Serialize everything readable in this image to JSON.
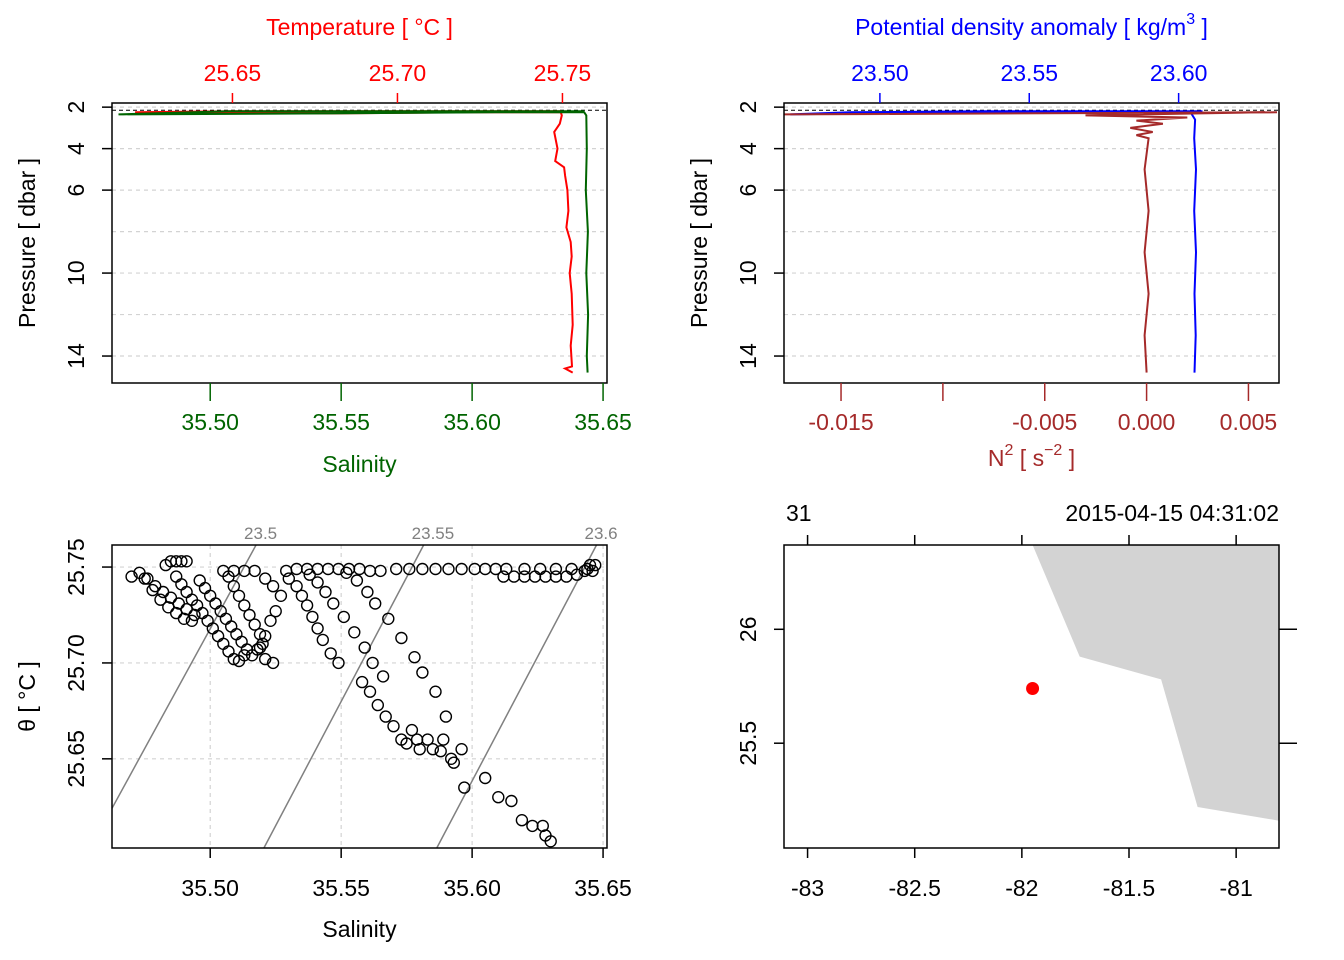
{
  "colors": {
    "temperature": "#ff0000",
    "salinity": "#006400",
    "density": "#0000ff",
    "n2": "#a52a2a",
    "grid": "#d3d3d3",
    "isopycnal": "#808080",
    "land": "#d3d3d3",
    "station": "#ff0000"
  },
  "chart_data": [
    {
      "id": "profile-ts",
      "type": "line",
      "title_top": "Temperature [ °C ]",
      "xlabel_bottom": "Salinity",
      "ylabel": "Pressure [ dbar ]",
      "top_ticks": [
        "25.65",
        "25.70",
        "25.75"
      ],
      "top_tick_values": [
        25.65,
        25.7,
        25.75
      ],
      "top_range": [
        25.6135,
        25.7635
      ],
      "bottom_ticks": [
        "35.50",
        "35.55",
        "35.60",
        "35.65"
      ],
      "bottom_tick_values": [
        35.5,
        35.55,
        35.6,
        35.65
      ],
      "bottom_range": [
        35.4625,
        35.6515
      ],
      "y_ticks": [
        "2",
        "4",
        "6",
        "10",
        "14"
      ],
      "y_tick_values": [
        2,
        4,
        6,
        10,
        14
      ],
      "y_gridlines": [
        2,
        4,
        6,
        8,
        10,
        12,
        14
      ],
      "y_range": [
        15.3,
        1.8
      ],
      "series": [
        {
          "name": "Temperature",
          "axis": "top",
          "points": [
            [
              25.7497,
              2.2
            ],
            [
              25.6505,
              2.2
            ],
            [
              25.6205,
              2.25
            ],
            [
              25.6805,
              2.3
            ],
            [
              25.7195,
              2.25
            ],
            [
              25.7495,
              2.25
            ],
            [
              25.7498,
              2.4
            ],
            [
              25.7492,
              2.8
            ],
            [
              25.7475,
              3.2
            ],
            [
              25.7485,
              4.0
            ],
            [
              25.7478,
              4.6
            ],
            [
              25.7505,
              4.9
            ],
            [
              25.7508,
              5.3
            ],
            [
              25.7515,
              6.0
            ],
            [
              25.7518,
              7.0
            ],
            [
              25.7512,
              7.8
            ],
            [
              25.7525,
              8.5
            ],
            [
              25.7528,
              9.2
            ],
            [
              25.7522,
              10.0
            ],
            [
              25.7528,
              11.0
            ],
            [
              25.7531,
              12.5
            ],
            [
              25.7525,
              13.5
            ],
            [
              25.7529,
              14.5
            ],
            [
              25.7508,
              14.6
            ],
            [
              25.7531,
              14.8
            ]
          ]
        },
        {
          "name": "Salinity",
          "axis": "bottom",
          "points": [
            [
              35.6428,
              2.2
            ],
            [
              35.507,
              2.2
            ],
            [
              35.465,
              2.35
            ],
            [
              35.545,
              2.3
            ],
            [
              35.609,
              2.25
            ],
            [
              35.6428,
              2.25
            ],
            [
              35.6436,
              2.4
            ],
            [
              35.6438,
              4.0
            ],
            [
              35.6434,
              6.0
            ],
            [
              35.6442,
              8.0
            ],
            [
              35.6436,
              10.0
            ],
            [
              35.6443,
              12.0
            ],
            [
              35.6438,
              14.0
            ],
            [
              35.6441,
              14.8
            ]
          ]
        }
      ]
    },
    {
      "id": "profile-density",
      "type": "line",
      "title_top": "Potential density anomaly [ kg/m",
      "title_sup": "3",
      "title_tail": " ]",
      "xlabel_bottom_main": "N",
      "xlabel_bottom_sup": "2",
      "xlabel_bottom_mid": " [ s",
      "xlabel_bottom_sup2": "−2",
      "xlabel_bottom_tail": " ]",
      "ylabel": "Pressure [ dbar ]",
      "top_ticks": [
        "23.50",
        "23.55",
        "23.60"
      ],
      "top_tick_values": [
        23.5,
        23.55,
        23.6
      ],
      "top_range": [
        23.4679,
        23.6336
      ],
      "bottom_ticks": [
        "-0.015",
        "",
        "-0.005",
        "0.000",
        "0.005"
      ],
      "bottom_tick_values": [
        -0.015,
        -0.01,
        -0.005,
        0.0,
        0.005
      ],
      "bottom_range": [
        -0.0178,
        0.0065
      ],
      "y_ticks": [
        "2",
        "4",
        "6",
        "10",
        "14"
      ],
      "y_tick_values": [
        2,
        4,
        6,
        10,
        14
      ],
      "y_gridlines": [
        2,
        4,
        6,
        8,
        10,
        12,
        14
      ],
      "y_range": [
        15.3,
        1.8
      ],
      "series": [
        {
          "name": "Potential density anomaly",
          "axis": "top",
          "points": [
            [
              23.608,
              2.2
            ],
            [
              23.535,
              2.2
            ],
            [
              23.49,
              2.25
            ],
            [
              23.47,
              2.35
            ],
            [
              23.52,
              2.25
            ],
            [
              23.59,
              2.2
            ],
            [
              23.604,
              2.25
            ],
            [
              23.6055,
              2.6
            ],
            [
              23.6052,
              3.5
            ],
            [
              23.6058,
              5.0
            ],
            [
              23.6052,
              7.0
            ],
            [
              23.6058,
              9.0
            ],
            [
              23.6053,
              11.0
            ],
            [
              23.6057,
              13.0
            ],
            [
              23.6053,
              14.8
            ]
          ]
        },
        {
          "name": "N2",
          "axis": "bottom",
          "points": [
            [
              0.0064,
              2.25
            ],
            [
              -0.0178,
              2.35
            ],
            [
              0.0058,
              2.25
            ],
            [
              -0.003,
              2.4
            ],
            [
              0.002,
              2.5
            ],
            [
              -0.0005,
              2.65
            ],
            [
              0.0008,
              2.8
            ],
            [
              -0.0008,
              3.0
            ],
            [
              0.0003,
              3.2
            ],
            [
              -0.0005,
              3.35
            ],
            [
              0.0001,
              3.5
            ],
            [
              -0.0001,
              5.0
            ],
            [
              0.0001,
              7.0
            ],
            [
              -0.0001,
              9.0
            ],
            [
              0.0001,
              11.0
            ],
            [
              -0.0001,
              13.0
            ],
            [
              0.0,
              14.8
            ]
          ]
        }
      ]
    },
    {
      "id": "ts-diagram",
      "type": "scatter",
      "xlabel": "Salinity",
      "ylabel": "θ [ °C ]",
      "x_ticks": [
        "35.50",
        "35.55",
        "35.60",
        "35.65"
      ],
      "x_tick_values": [
        35.5,
        35.55,
        35.6,
        35.65
      ],
      "x_range": [
        35.4625,
        35.6515
      ],
      "y_ticks": [
        "25.65",
        "25.70",
        "25.75"
      ],
      "y_tick_values": [
        25.65,
        25.7,
        25.75
      ],
      "y_range": [
        25.6035,
        25.7615
      ],
      "isopycnals": [
        {
          "label": "23.5",
          "from": [
            35.4625,
            25.6242
          ],
          "to": [
            35.5175,
            25.7615
          ]
        },
        {
          "label": "23.55",
          "from": [
            35.5205,
            25.6035
          ],
          "to": [
            35.5815,
            25.7615
          ]
        },
        {
          "label": "23.6",
          "from": [
            35.5865,
            25.6035
          ],
          "to": [
            35.6475,
            25.7615
          ]
        }
      ],
      "points": [
        [
          35.47,
          25.745
        ],
        [
          35.473,
          25.747
        ],
        [
          35.476,
          25.744
        ],
        [
          35.479,
          25.74
        ],
        [
          35.482,
          25.737
        ],
        [
          35.485,
          25.734
        ],
        [
          35.488,
          25.731
        ],
        [
          35.491,
          25.728
        ],
        [
          35.494,
          25.725
        ],
        [
          35.475,
          25.744
        ],
        [
          35.478,
          25.738
        ],
        [
          35.481,
          25.733
        ],
        [
          35.484,
          25.729
        ],
        [
          35.487,
          25.726
        ],
        [
          35.49,
          25.723
        ],
        [
          35.493,
          25.722
        ],
        [
          35.483,
          25.751
        ],
        [
          35.485,
          25.753
        ],
        [
          35.487,
          25.753
        ],
        [
          35.489,
          25.753
        ],
        [
          35.491,
          25.753
        ],
        [
          35.487,
          25.745
        ],
        [
          35.489,
          25.741
        ],
        [
          35.491,
          25.737
        ],
        [
          35.493,
          25.733
        ],
        [
          35.495,
          25.73
        ],
        [
          35.497,
          25.726
        ],
        [
          35.499,
          25.722
        ],
        [
          35.501,
          25.718
        ],
        [
          35.503,
          25.714
        ],
        [
          35.505,
          25.71
        ],
        [
          35.507,
          25.706
        ],
        [
          35.509,
          25.702
        ],
        [
          35.511,
          25.701
        ],
        [
          35.513,
          25.704
        ],
        [
          35.496,
          25.743
        ],
        [
          35.498,
          25.739
        ],
        [
          35.5,
          25.735
        ],
        [
          35.502,
          25.731
        ],
        [
          35.504,
          25.727
        ],
        [
          35.506,
          25.723
        ],
        [
          35.508,
          25.719
        ],
        [
          35.51,
          25.715
        ],
        [
          35.512,
          25.711
        ],
        [
          35.514,
          25.707
        ],
        [
          35.516,
          25.704
        ],
        [
          35.518,
          25.707
        ],
        [
          35.52,
          25.71
        ],
        [
          35.519,
          25.715
        ],
        [
          35.517,
          25.72
        ],
        [
          35.515,
          25.725
        ],
        [
          35.513,
          25.73
        ],
        [
          35.511,
          25.735
        ],
        [
          35.509,
          25.74
        ],
        [
          35.507,
          25.745
        ],
        [
          35.505,
          25.748
        ],
        [
          35.509,
          25.748
        ],
        [
          35.513,
          25.748
        ],
        [
          35.517,
          25.748
        ],
        [
          35.521,
          25.744
        ],
        [
          35.524,
          25.74
        ],
        [
          35.527,
          25.735
        ],
        [
          35.525,
          25.727
        ],
        [
          35.523,
          25.722
        ],
        [
          35.521,
          25.714
        ],
        [
          35.519,
          25.708
        ],
        [
          35.521,
          25.702
        ],
        [
          35.524,
          25.7
        ],
        [
          35.529,
          25.748
        ],
        [
          35.533,
          25.749
        ],
        [
          35.537,
          25.749
        ],
        [
          35.541,
          25.749
        ],
        [
          35.545,
          25.749
        ],
        [
          35.549,
          25.749
        ],
        [
          35.553,
          25.749
        ],
        [
          35.557,
          25.749
        ],
        [
          35.561,
          25.748
        ],
        [
          35.565,
          25.748
        ],
        [
          35.53,
          25.744
        ],
        [
          35.533,
          25.74
        ],
        [
          35.535,
          25.735
        ],
        [
          35.537,
          25.73
        ],
        [
          35.539,
          25.724
        ],
        [
          35.541,
          25.718
        ],
        [
          35.543,
          25.712
        ],
        [
          35.546,
          25.705
        ],
        [
          35.549,
          25.7
        ],
        [
          35.538,
          25.746
        ],
        [
          35.541,
          25.742
        ],
        [
          35.544,
          25.737
        ],
        [
          35.547,
          25.731
        ],
        [
          35.551,
          25.724
        ],
        [
          35.555,
          25.716
        ],
        [
          35.559,
          25.708
        ],
        [
          35.562,
          25.7
        ],
        [
          35.566,
          25.693
        ],
        [
          35.552,
          25.747
        ],
        [
          35.556,
          25.743
        ],
        [
          35.56,
          25.737
        ],
        [
          35.563,
          25.731
        ],
        [
          35.568,
          25.723
        ],
        [
          35.573,
          25.713
        ],
        [
          35.578,
          25.703
        ],
        [
          35.581,
          25.695
        ],
        [
          35.586,
          25.685
        ],
        [
          35.59,
          25.672
        ],
        [
          35.596,
          25.655
        ],
        [
          35.558,
          25.69
        ],
        [
          35.561,
          25.685
        ],
        [
          35.564,
          25.678
        ],
        [
          35.567,
          25.672
        ],
        [
          35.57,
          25.667
        ],
        [
          35.573,
          25.66
        ],
        [
          35.575,
          25.658
        ],
        [
          35.577,
          25.665
        ],
        [
          35.579,
          25.66
        ],
        [
          35.58,
          25.655
        ],
        [
          35.583,
          25.66
        ],
        [
          35.585,
          25.655
        ],
        [
          35.588,
          25.654
        ],
        [
          35.592,
          25.65
        ],
        [
          35.589,
          25.66
        ],
        [
          35.593,
          25.648
        ],
        [
          35.597,
          25.635
        ],
        [
          35.605,
          25.64
        ],
        [
          35.61,
          25.63
        ],
        [
          35.615,
          25.628
        ],
        [
          35.619,
          25.618
        ],
        [
          35.623,
          25.615
        ],
        [
          35.627,
          25.615
        ],
        [
          35.628,
          25.61
        ],
        [
          35.63,
          25.607
        ],
        [
          35.571,
          25.749
        ],
        [
          35.576,
          25.749
        ],
        [
          35.581,
          25.749
        ],
        [
          35.586,
          25.749
        ],
        [
          35.591,
          25.749
        ],
        [
          35.596,
          25.749
        ],
        [
          35.601,
          25.749
        ],
        [
          35.605,
          25.749
        ],
        [
          35.609,
          25.749
        ],
        [
          35.613,
          25.749
        ],
        [
          35.612,
          25.745
        ],
        [
          35.616,
          25.745
        ],
        [
          35.62,
          25.745
        ],
        [
          35.624,
          25.745
        ],
        [
          35.628,
          25.745
        ],
        [
          35.632,
          25.745
        ],
        [
          35.636,
          25.745
        ],
        [
          35.64,
          25.746
        ],
        [
          35.643,
          25.748
        ],
        [
          35.645,
          25.751
        ],
        [
          35.646,
          25.748
        ],
        [
          35.647,
          25.751
        ],
        [
          35.62,
          25.749
        ],
        [
          35.626,
          25.749
        ],
        [
          35.632,
          25.749
        ],
        [
          35.638,
          25.749
        ],
        [
          35.644,
          25.749
        ]
      ]
    },
    {
      "id": "station-map",
      "type": "map",
      "top_left_label": "31",
      "top_right_label": "2015-04-15 04:31:02",
      "x_ticks": [
        "-83",
        "-82.5",
        "-82",
        "-81.5",
        "-81"
      ],
      "x_tick_values": [
        -83,
        -82.5,
        -82,
        -81.5,
        -81
      ],
      "x_range": [
        -83.11,
        -80.8
      ],
      "y_ticks": [
        "26",
        "25.5"
      ],
      "y_tick_values": [
        26,
        25.5
      ],
      "y_range": [
        25.04,
        26.37
      ],
      "land_polygon": [
        [
          -81.95,
          26.37
        ],
        [
          -81.73,
          25.88
        ],
        [
          -81.35,
          25.78
        ],
        [
          -81.18,
          25.22
        ],
        [
          -80.8,
          25.16
        ],
        [
          -80.8,
          26.37
        ]
      ],
      "station": {
        "lon": -81.95,
        "lat": 25.74
      }
    }
  ]
}
